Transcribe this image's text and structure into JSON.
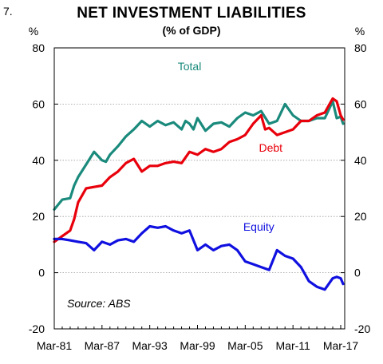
{
  "figure_number": "7.",
  "chart_data": {
    "type": "line",
    "title": "NET INVESTMENT LIABILITIES",
    "subtitle": "(% of GDP)",
    "unit_left": "%",
    "unit_right": "%",
    "ylim": [
      -20,
      80
    ],
    "y_ticks": [
      -20,
      0,
      20,
      40,
      60,
      80
    ],
    "x_tick_labels": [
      "Mar-81",
      "Mar-87",
      "Mar-93",
      "Mar-99",
      "Mar-05",
      "Mar-11",
      "Mar-17"
    ],
    "x_tick_years": [
      1981,
      1987,
      1993,
      1999,
      2005,
      2011,
      2017
    ],
    "xlim": [
      1981,
      2017.5
    ],
    "grid": true,
    "source": "Source: ABS",
    "series": [
      {
        "name": "Total",
        "color": "#1a8a7c",
        "x": [
          1981.0,
          1982.0,
          1983.0,
          1983.5,
          1984.0,
          1985.0,
          1986.0,
          1987.0,
          1987.5,
          1988.0,
          1989.0,
          1990.0,
          1991.0,
          1992.0,
          1993.0,
          1994.0,
          1995.0,
          1996.0,
          1997.0,
          1997.5,
          1998.0,
          1998.5,
          1999.0,
          2000.0,
          2001.0,
          2002.0,
          2003.0,
          2004.0,
          2005.0,
          2006.0,
          2007.0,
          2008.0,
          2009.0,
          2010.0,
          2011.0,
          2012.0,
          2013.0,
          2014.0,
          2015.0,
          2016.0,
          2016.5,
          2017.0,
          2017.3
        ],
        "values": [
          22.5,
          26,
          26.5,
          31,
          34,
          38.5,
          43,
          40,
          39.5,
          42,
          45,
          48.5,
          51,
          54,
          52,
          54,
          52.5,
          53.5,
          51,
          54,
          53,
          51,
          55,
          50.5,
          53,
          53.5,
          52,
          55,
          57,
          56,
          57.5,
          53,
          54,
          60,
          56,
          54,
          54,
          55,
          55,
          61,
          55,
          55.5,
          53
        ]
      },
      {
        "name": "Debt",
        "color": "#e8000b",
        "x": [
          1981.0,
          1982.0,
          1983.0,
          1983.5,
          1984.0,
          1985.0,
          1986.0,
          1987.0,
          1988.0,
          1989.0,
          1990.0,
          1991.0,
          1992.0,
          1993.0,
          1994.0,
          1995.0,
          1996.0,
          1997.0,
          1998.0,
          1999.0,
          2000.0,
          2001.0,
          2002.0,
          2003.0,
          2004.0,
          2005.0,
          2006.0,
          2007.0,
          2007.5,
          2008.0,
          2009.0,
          2010.0,
          2011.0,
          2012.0,
          2013.0,
          2014.0,
          2015.0,
          2016.0,
          2016.5,
          2017.0,
          2017.3
        ],
        "values": [
          11,
          13,
          15,
          19,
          25,
          30,
          30.5,
          31,
          34,
          36,
          39,
          40.5,
          36,
          38,
          38,
          39,
          39.5,
          39,
          43,
          42,
          44,
          43,
          44,
          46.5,
          47.5,
          49,
          53,
          56,
          51,
          51.5,
          49,
          50,
          51,
          54,
          54,
          56,
          57,
          62,
          61,
          56,
          54.5
        ]
      },
      {
        "name": "Equity",
        "color": "#1010e0",
        "x": [
          1981.0,
          1982.0,
          1983.0,
          1984.0,
          1985.0,
          1986.0,
          1987.0,
          1988.0,
          1989.0,
          1990.0,
          1991.0,
          1992.0,
          1993.0,
          1994.0,
          1995.0,
          1996.0,
          1997.0,
          1998.0,
          1999.0,
          2000.0,
          2001.0,
          2002.0,
          2003.0,
          2004.0,
          2005.0,
          2006.0,
          2007.0,
          2008.0,
          2009.0,
          2010.0,
          2011.0,
          2012.0,
          2013.0,
          2014.0,
          2015.0,
          2016.0,
          2016.5,
          2017.0,
          2017.3
        ],
        "values": [
          12,
          12,
          11.5,
          11,
          10.5,
          8,
          11,
          10,
          11.5,
          12,
          11,
          14,
          16.5,
          16,
          16.5,
          15,
          14,
          15,
          8,
          10,
          8,
          9.5,
          10,
          8,
          4,
          3,
          2,
          1,
          8,
          6,
          5,
          2,
          -3,
          -5,
          -6,
          -2,
          -1.5,
          -2,
          -4
        ]
      }
    ],
    "annotations": [
      {
        "text": "Total",
        "series": "Total",
        "x": 1998.0,
        "y": 72
      },
      {
        "text": "Debt",
        "series": "Debt",
        "x": 2008.2,
        "y": 43
      },
      {
        "text": "Equity",
        "series": "Equity",
        "x": 2006.7,
        "y": 15
      }
    ]
  }
}
